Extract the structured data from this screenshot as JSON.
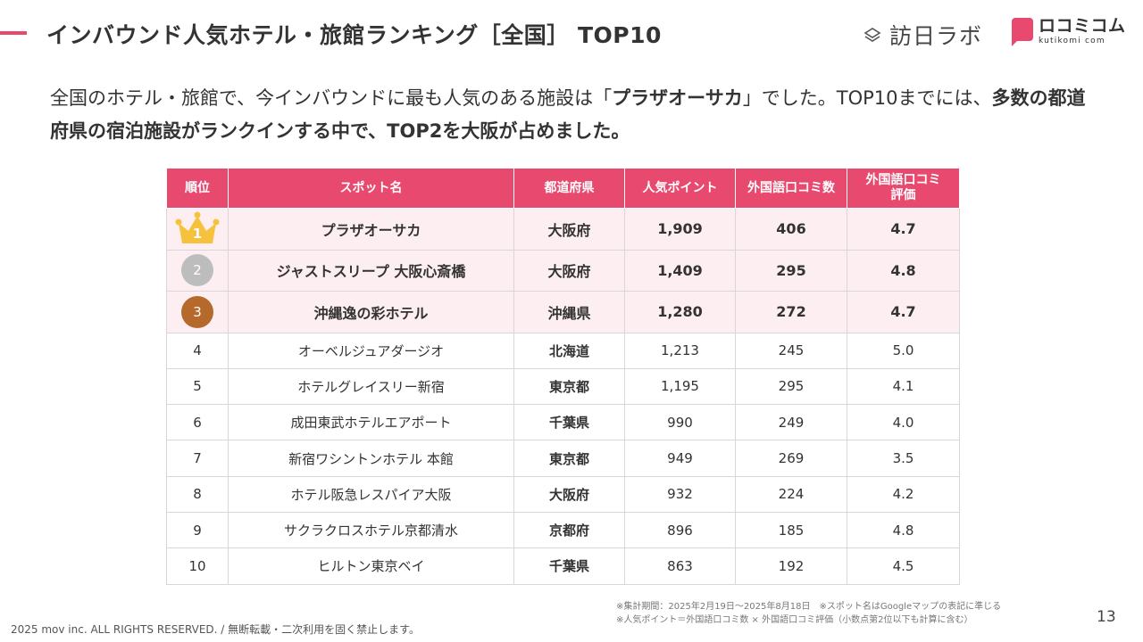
{
  "header": {
    "title": "インバウンド人気ホテル・旅館ランキング［全国］ TOP10",
    "logo_houmon": "訪日ラボ",
    "logo_kuchikomi_kana": "ロコミコム",
    "logo_kuchikomi_romaji": "kutikomi com"
  },
  "lead": {
    "part1": "全国のホテル・旅館で、今インバウンドに最も人気のある施設は「",
    "highlight1": "プラザオーサカ",
    "part2": "」でした。TOP10までには、",
    "highlight2": "多数の都道府県の宿泊施設がランクインする中で、TOP2を大阪が占めました。"
  },
  "table": {
    "headers": [
      "順位",
      "スポット名",
      "都道府県",
      "人気ポイント",
      "外国語口コミ数",
      "外国語口コミ評価"
    ],
    "rows": [
      {
        "rank": "1",
        "name": "プラザオーサカ",
        "pref": "大阪府",
        "points": "1,909",
        "reviews": "406",
        "rating": "4.7"
      },
      {
        "rank": "2",
        "name": "ジャストスリープ 大阪心斎橋",
        "pref": "大阪府",
        "points": "1,409",
        "reviews": "295",
        "rating": "4.8"
      },
      {
        "rank": "3",
        "name": "沖縄逸の彩ホテル",
        "pref": "沖縄県",
        "points": "1,280",
        "reviews": "272",
        "rating": "4.7"
      },
      {
        "rank": "4",
        "name": "オーベルジュアダージオ",
        "pref": "北海道",
        "points": "1,213",
        "reviews": "245",
        "rating": "5.0"
      },
      {
        "rank": "5",
        "name": "ホテルグレイスリー新宿",
        "pref": "東京都",
        "points": "1,195",
        "reviews": "295",
        "rating": "4.1"
      },
      {
        "rank": "6",
        "name": "成田東武ホテルエアポート",
        "pref": "千葉県",
        "points": "990",
        "reviews": "249",
        "rating": "4.0"
      },
      {
        "rank": "7",
        "name": "新宿ワシントンホテル 本館",
        "pref": "東京都",
        "points": "949",
        "reviews": "269",
        "rating": "3.5"
      },
      {
        "rank": "8",
        "name": "ホテル阪急レスパイア大阪",
        "pref": "大阪府",
        "points": "932",
        "reviews": "224",
        "rating": "4.2"
      },
      {
        "rank": "9",
        "name": "サクラクロスホテル京都清水",
        "pref": "京都府",
        "points": "896",
        "reviews": "185",
        "rating": "4.8"
      },
      {
        "rank": "10",
        "name": "ヒルトン東京ベイ",
        "pref": "千葉県",
        "points": "863",
        "reviews": "192",
        "rating": "4.5"
      }
    ]
  },
  "notes": {
    "line1": "※集計期間：2025年2月19日〜2025年8月18日　※スポット名はGoogleマップの表記に準じる",
    "line2": "※人気ポイント＝外国語口コミ数 × 外国語口コミ評価（小数点第2位以下も計算に含む）"
  },
  "footer": {
    "copyright": "2025 mov inc. ALL RIGHTS RESERVED. / 無断転載・二次利用を固く禁止します。",
    "page": "13"
  },
  "colors": {
    "accent": "#e8496f",
    "row_highlight": "#fdeef2",
    "crown": "#f6c23e",
    "silver": "#bdbdbd",
    "bronze": "#b5692b"
  }
}
